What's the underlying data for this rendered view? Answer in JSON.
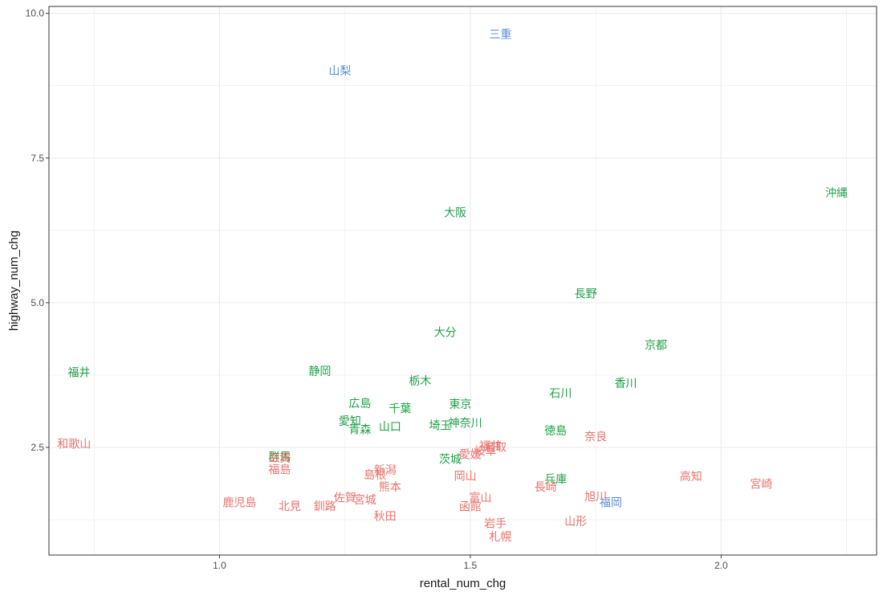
{
  "chart_data": {
    "type": "scatter",
    "title": "",
    "xlabel": "rental_num_chg",
    "ylabel": "highway_num_chg",
    "xlim": [
      0.66,
      2.31
    ],
    "ylim": [
      0.64,
      10.12
    ],
    "x_ticks": [
      1.0,
      1.5,
      2.0
    ],
    "x_tick_labels": [
      "1.0",
      "1.5",
      "2.0"
    ],
    "y_ticks": [
      2.5,
      5.0,
      7.5,
      10.0
    ],
    "y_tick_labels": [
      "2.5",
      "5.0",
      "7.5",
      "10.0"
    ],
    "grid": true,
    "legend": "none",
    "group_colors": {
      "red": "#e8726c",
      "green": "#1fa047",
      "blue": "#5b8fd6"
    },
    "points": [
      {
        "label": "三重",
        "x": 1.56,
        "y": 9.64,
        "group": "blue"
      },
      {
        "label": "山梨",
        "x": 1.24,
        "y": 9.01,
        "group": "blue"
      },
      {
        "label": "福岡",
        "x": 1.78,
        "y": 1.55,
        "group": "blue"
      },
      {
        "label": "沖縄",
        "x": 2.23,
        "y": 6.9,
        "group": "green"
      },
      {
        "label": "大阪",
        "x": 1.47,
        "y": 6.56,
        "group": "green"
      },
      {
        "label": "長野",
        "x": 1.73,
        "y": 5.16,
        "group": "green"
      },
      {
        "label": "大分",
        "x": 1.45,
        "y": 4.49,
        "group": "green"
      },
      {
        "label": "京都",
        "x": 1.87,
        "y": 4.27,
        "group": "green"
      },
      {
        "label": "福井",
        "x": 0.72,
        "y": 3.8,
        "group": "green"
      },
      {
        "label": "静岡",
        "x": 1.2,
        "y": 3.82,
        "group": "green"
      },
      {
        "label": "栃木",
        "x": 1.4,
        "y": 3.65,
        "group": "green"
      },
      {
        "label": "香川",
        "x": 1.81,
        "y": 3.61,
        "group": "green"
      },
      {
        "label": "石川",
        "x": 1.68,
        "y": 3.44,
        "group": "green"
      },
      {
        "label": "広島",
        "x": 1.28,
        "y": 3.26,
        "group": "green"
      },
      {
        "label": "東京",
        "x": 1.48,
        "y": 3.25,
        "group": "green"
      },
      {
        "label": "千葉",
        "x": 1.36,
        "y": 3.17,
        "group": "green"
      },
      {
        "label": "愛知",
        "x": 1.26,
        "y": 2.96,
        "group": "green"
      },
      {
        "label": "神奈川",
        "x": 1.49,
        "y": 2.92,
        "group": "green"
      },
      {
        "label": "埼玉",
        "x": 1.44,
        "y": 2.88,
        "group": "green"
      },
      {
        "label": "山口",
        "x": 1.34,
        "y": 2.86,
        "group": "green"
      },
      {
        "label": "青森",
        "x": 1.28,
        "y": 2.81,
        "group": "green"
      },
      {
        "label": "徳島",
        "x": 1.67,
        "y": 2.79,
        "group": "green"
      },
      {
        "label": "茨城",
        "x": 1.46,
        "y": 2.3,
        "group": "green"
      },
      {
        "label": "群馬",
        "x": 1.12,
        "y": 2.34,
        "group": "green"
      },
      {
        "label": "兵庫",
        "x": 1.67,
        "y": 1.95,
        "group": "green"
      },
      {
        "label": "和歌山",
        "x": 0.71,
        "y": 2.56,
        "group": "red"
      },
      {
        "label": "奈良",
        "x": 1.75,
        "y": 2.69,
        "group": "red"
      },
      {
        "label": "鳥取",
        "x": 1.55,
        "y": 2.51,
        "group": "red"
      },
      {
        "label": "福井",
        "x": 1.54,
        "y": 2.53,
        "group": "red"
      },
      {
        "label": "岐阜",
        "x": 1.53,
        "y": 2.44,
        "group": "red"
      },
      {
        "label": "愛媛",
        "x": 1.5,
        "y": 2.38,
        "group": "red"
      },
      {
        "label": "新潟",
        "x": 1.33,
        "y": 2.11,
        "group": "red"
      },
      {
        "label": "島根",
        "x": 1.31,
        "y": 2.03,
        "group": "red"
      },
      {
        "label": "岡山",
        "x": 1.49,
        "y": 2.01,
        "group": "red"
      },
      {
        "label": "熊本",
        "x": 1.34,
        "y": 1.82,
        "group": "red"
      },
      {
        "label": "長崎",
        "x": 1.65,
        "y": 1.82,
        "group": "red"
      },
      {
        "label": "高知",
        "x": 1.94,
        "y": 2.0,
        "group": "red"
      },
      {
        "label": "宮崎",
        "x": 2.08,
        "y": 1.87,
        "group": "red"
      },
      {
        "label": "佐賀",
        "x": 1.25,
        "y": 1.63,
        "group": "red"
      },
      {
        "label": "宮城",
        "x": 1.29,
        "y": 1.6,
        "group": "red"
      },
      {
        "label": "富山",
        "x": 1.52,
        "y": 1.63,
        "group": "red"
      },
      {
        "label": "旭川",
        "x": 1.75,
        "y": 1.65,
        "group": "red"
      },
      {
        "label": "鹿児島",
        "x": 1.04,
        "y": 1.55,
        "group": "red"
      },
      {
        "label": "北見",
        "x": 1.14,
        "y": 1.49,
        "group": "red"
      },
      {
        "label": "釧路",
        "x": 1.21,
        "y": 1.49,
        "group": "red"
      },
      {
        "label": "函館",
        "x": 1.5,
        "y": 1.48,
        "group": "red"
      },
      {
        "label": "秋田",
        "x": 1.33,
        "y": 1.31,
        "group": "red"
      },
      {
        "label": "山形",
        "x": 1.71,
        "y": 1.22,
        "group": "red"
      },
      {
        "label": "岩手",
        "x": 1.55,
        "y": 1.19,
        "group": "red"
      },
      {
        "label": "札幌",
        "x": 1.56,
        "y": 0.96,
        "group": "red"
      },
      {
        "label": "福島",
        "x": 1.12,
        "y": 2.12,
        "group": "red"
      },
      {
        "label": "滋賀",
        "x": 1.12,
        "y": 2.32,
        "group": "red"
      }
    ]
  }
}
